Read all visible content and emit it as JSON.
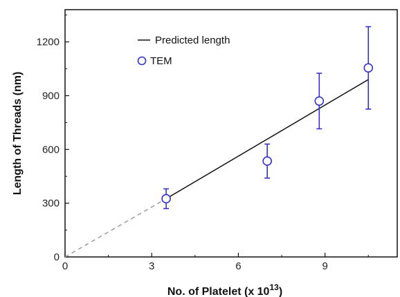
{
  "chart_data": {
    "type": "scatter",
    "xlabel": "No. of Platelet (x 10",
    "xlabel_superscript": "13",
    "xlabel_suffix": ")",
    "ylabel": "Length of Threads (nm)",
    "xlim": [
      0,
      11.5
    ],
    "ylim": [
      0,
      1380
    ],
    "x_ticks": [
      0,
      3,
      6,
      9
    ],
    "y_ticks": [
      0,
      300,
      600,
      900,
      1200
    ],
    "grid": false,
    "legend_position": "top-left",
    "series": [
      {
        "name": "Predicted length",
        "kind": "line",
        "color": "#111111",
        "x": [
          3.5,
          10.5
        ],
        "y": [
          325,
          990
        ]
      },
      {
        "kind": "extrapolation",
        "color": "#999999",
        "style": "dashed",
        "x": [
          0,
          3.5
        ],
        "y": [
          0,
          325
        ]
      },
      {
        "name": "TEM",
        "kind": "points",
        "color": "#3333cc",
        "marker": "open-circle",
        "x": [
          3.5,
          7.0,
          8.8,
          10.5
        ],
        "y": [
          325,
          535,
          870,
          1055
        ],
        "error": [
          55,
          95,
          155,
          230
        ]
      }
    ]
  }
}
